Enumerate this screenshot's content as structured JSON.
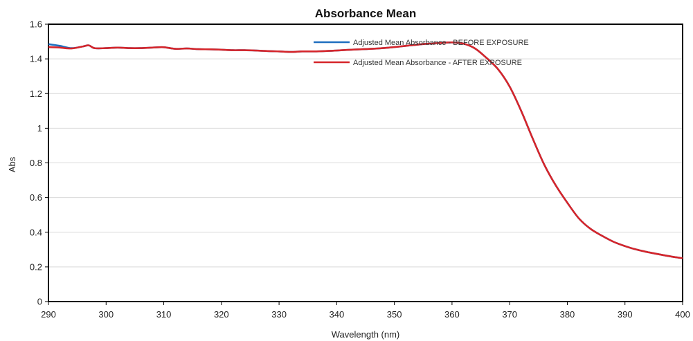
{
  "chart_data": {
    "type": "line",
    "title": "Absorbance Mean",
    "xlabel": "Wavelength (nm)",
    "ylabel": "Abs",
    "xlim": [
      290,
      400
    ],
    "ylim": [
      0,
      1.6
    ],
    "x_ticks": [
      "290",
      "300",
      "310",
      "320",
      "330",
      "340",
      "350",
      "360",
      "370",
      "380",
      "390",
      "400"
    ],
    "y_ticks": [
      "0",
      "0.2",
      "0.4",
      "0.6",
      "0.8",
      "1",
      "1.2",
      "1.4",
      "1.6"
    ],
    "grid": "horizontal",
    "legend_position": "top-center-right",
    "series": [
      {
        "name": "Adjusted Mean Absorbance - BEFORE EXPOSURE",
        "color": "#1f6fbf",
        "x": [
          290,
          292,
          294,
          296,
          297,
          298,
          300,
          302,
          304,
          306,
          308,
          310,
          312,
          314,
          316,
          318,
          320,
          322,
          324,
          326,
          328,
          330,
          332,
          334,
          336,
          338,
          340,
          342,
          344,
          346,
          348,
          350,
          352,
          354,
          356,
          358,
          360,
          362,
          364,
          366,
          368,
          370,
          372,
          374,
          376,
          378,
          380,
          382,
          384,
          386,
          388,
          390,
          392,
          394,
          396,
          398,
          400
        ],
        "y": [
          1.485,
          1.475,
          1.462,
          1.472,
          1.478,
          1.462,
          1.462,
          1.465,
          1.462,
          1.462,
          1.465,
          1.467,
          1.458,
          1.46,
          1.456,
          1.455,
          1.453,
          1.45,
          1.45,
          1.448,
          1.445,
          1.443,
          1.44,
          1.443,
          1.443,
          1.445,
          1.448,
          1.452,
          1.455,
          1.458,
          1.462,
          1.468,
          1.475,
          1.482,
          1.488,
          1.492,
          1.495,
          1.488,
          1.46,
          1.405,
          1.34,
          1.24,
          1.1,
          0.94,
          0.79,
          0.67,
          0.57,
          0.48,
          0.42,
          0.38,
          0.345,
          0.32,
          0.3,
          0.285,
          0.272,
          0.26,
          0.25
        ]
      },
      {
        "name": "Adjusted Mean Absorbance - AFTER EXPOSURE",
        "color": "#d6252a",
        "x": [
          290,
          292,
          294,
          296,
          297,
          298,
          300,
          302,
          304,
          306,
          308,
          310,
          312,
          314,
          316,
          318,
          320,
          322,
          324,
          326,
          328,
          330,
          332,
          334,
          336,
          338,
          340,
          342,
          344,
          346,
          348,
          350,
          352,
          354,
          356,
          358,
          360,
          362,
          364,
          366,
          368,
          370,
          372,
          374,
          376,
          378,
          380,
          382,
          384,
          386,
          388,
          390,
          392,
          394,
          396,
          398,
          400
        ],
        "y": [
          1.468,
          1.465,
          1.46,
          1.472,
          1.478,
          1.462,
          1.462,
          1.465,
          1.462,
          1.462,
          1.465,
          1.467,
          1.458,
          1.46,
          1.456,
          1.455,
          1.453,
          1.45,
          1.45,
          1.448,
          1.445,
          1.443,
          1.44,
          1.443,
          1.443,
          1.445,
          1.448,
          1.452,
          1.455,
          1.458,
          1.462,
          1.468,
          1.475,
          1.482,
          1.488,
          1.492,
          1.495,
          1.488,
          1.46,
          1.405,
          1.34,
          1.24,
          1.1,
          0.94,
          0.79,
          0.67,
          0.57,
          0.48,
          0.42,
          0.38,
          0.345,
          0.32,
          0.3,
          0.285,
          0.272,
          0.26,
          0.25
        ]
      }
    ]
  }
}
